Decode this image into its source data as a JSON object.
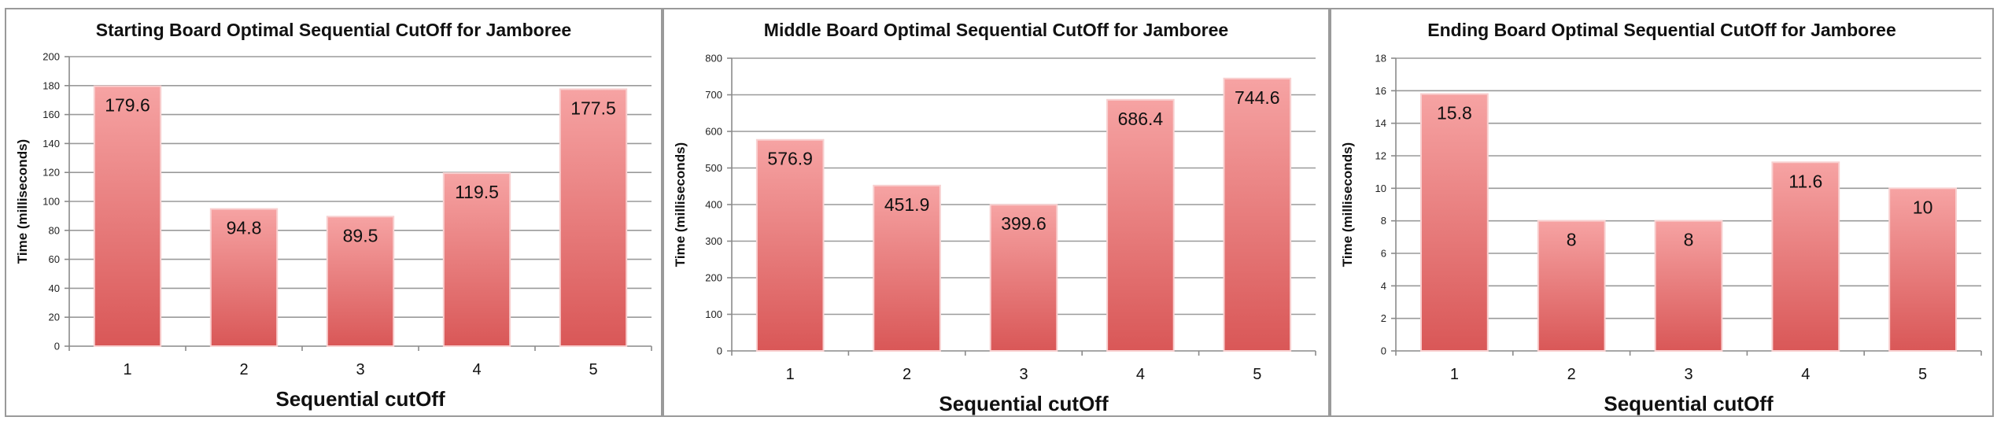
{
  "chart_data": [
    {
      "type": "bar",
      "title": "Starting Board Optimal Sequential CutOff for Jamboree",
      "xlabel": "Sequential cutOff",
      "ylabel": "Time (milliseconds)",
      "categories": [
        "1",
        "2",
        "3",
        "4",
        "5"
      ],
      "values": [
        179.6,
        94.8,
        89.5,
        119.5,
        177.5
      ],
      "data_labels": [
        "179.6",
        "94.8",
        "89.5",
        "119.5",
        "177.5"
      ],
      "ylim": [
        0,
        200
      ],
      "yticks": [
        "0",
        "20",
        "40",
        "60",
        "80",
        "100",
        "120",
        "140",
        "160",
        "180",
        "200"
      ],
      "grid": true,
      "legend": "none"
    },
    {
      "type": "bar",
      "title": "Middle Board Optimal Sequential CutOff for Jamboree",
      "xlabel": "Sequential cutOff",
      "ylabel": "Time (milliseconds)",
      "categories": [
        "1",
        "2",
        "3",
        "4",
        "5"
      ],
      "values": [
        576.9,
        451.9,
        399.6,
        686.4,
        744.6
      ],
      "data_labels": [
        "576.9",
        "451.9",
        "399.6",
        "686.4",
        "744.6"
      ],
      "ylim": [
        0,
        800
      ],
      "yticks": [
        "0",
        "100",
        "200",
        "300",
        "400",
        "500",
        "600",
        "700",
        "800"
      ],
      "grid": true,
      "legend": "none"
    },
    {
      "type": "bar",
      "title": "Ending Board Optimal Sequential CutOff for Jamboree",
      "xlabel": "Sequential cutOff",
      "ylabel": "Time (milliseconds)",
      "categories": [
        "1",
        "2",
        "3",
        "4",
        "5"
      ],
      "values": [
        15.8,
        8,
        8,
        11.6,
        10
      ],
      "data_labels": [
        "15.8",
        "8",
        "8",
        "11.6",
        "10"
      ],
      "ylim": [
        0,
        18
      ],
      "yticks": [
        "0",
        "2",
        "4",
        "6",
        "8",
        "10",
        "12",
        "14",
        "16",
        "18"
      ],
      "grid": true,
      "legend": "none"
    }
  ],
  "colors": {
    "bar_top": "#f6a3a3",
    "bar_bottom": "#d95757",
    "bar_edge": "#f8d0d0",
    "grid": "#9a9a9a"
  }
}
